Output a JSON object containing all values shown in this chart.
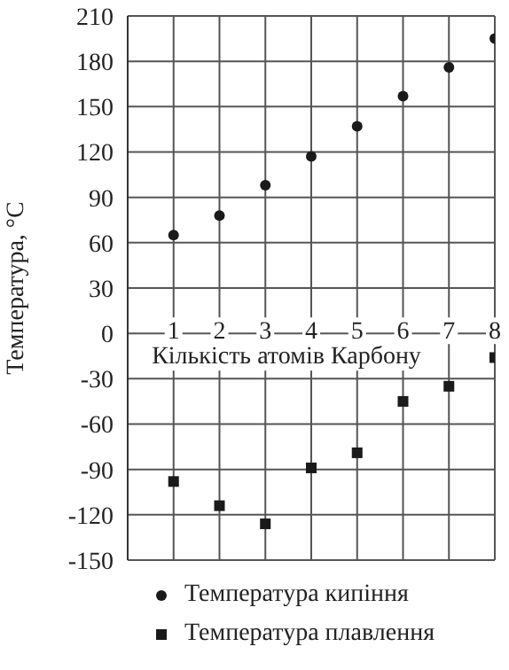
{
  "chart_data": {
    "type": "scatter",
    "xlabel": "Кількість атомів Карбону",
    "ylabel": "Температура, °C",
    "x": [
      1,
      2,
      3,
      4,
      5,
      6,
      7,
      8
    ],
    "series": [
      {
        "name": "Температура кипіння",
        "color": "#1a1a1a",
        "marker": "circle",
        "values": [
          65,
          78,
          98,
          117,
          137,
          157,
          176,
          195
        ]
      },
      {
        "name": "Температура плавлення",
        "color": "#1a1a1a",
        "marker": "square",
        "values": [
          -98,
          -114,
          -126,
          -89,
          -79,
          -45,
          -35,
          -16
        ]
      }
    ],
    "xlim": [
      0,
      8
    ],
    "xticks": [
      1,
      2,
      3,
      4,
      5,
      6,
      7,
      8
    ],
    "ylim": [
      -150,
      210
    ],
    "yticks": [
      -150,
      -120,
      -90,
      -60,
      -30,
      0,
      30,
      60,
      90,
      120,
      150,
      180,
      210
    ],
    "grid": true,
    "legend": "bottom"
  }
}
